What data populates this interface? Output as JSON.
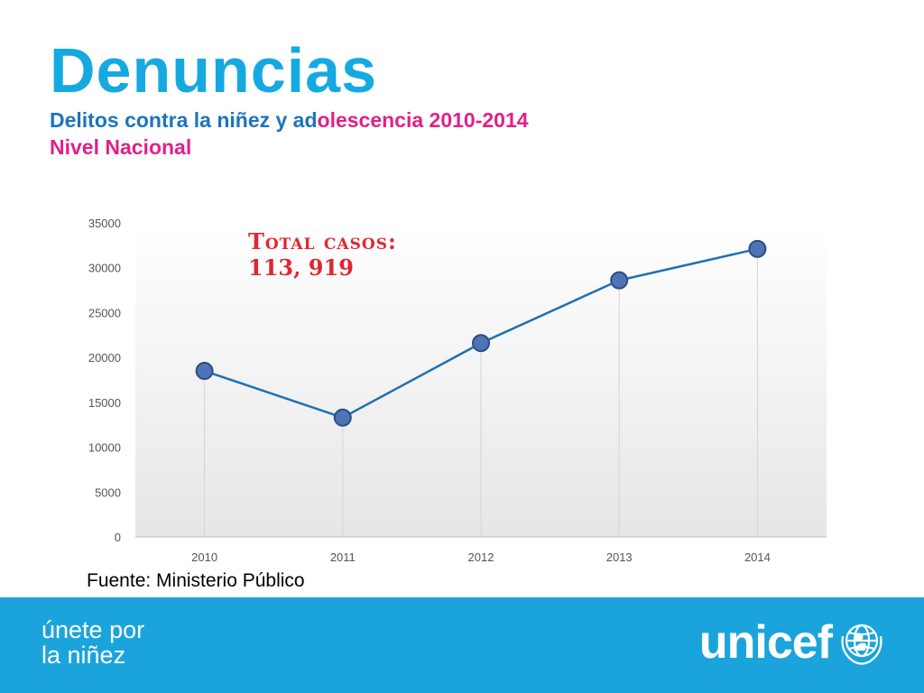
{
  "header": {
    "title": "Denuncias",
    "subtitle_line1_part1": "Delitos contra la niñez y ad",
    "subtitle_line1_part2": "olescencia 2010-2014",
    "subtitle_line2": "Nivel Nacional"
  },
  "annotation": {
    "line1": "Total casos:",
    "line2": "113, 919"
  },
  "source": "Fuente:  Ministerio Público",
  "footer": {
    "slogan_line1": "únete por",
    "slogan_line2": "la niñez",
    "brand": "unicef"
  },
  "colors": {
    "title": "#16a9e1",
    "subtitle_blue": "#1b75bb",
    "subtitle_pink": "#e0218a",
    "line": "#1f6fb2",
    "marker_fill": "#4f74b5",
    "marker_stroke": "#2c4d86",
    "annotation": "#e0262f",
    "footer": "#1ba4dc"
  },
  "chart_data": {
    "type": "line",
    "categories": [
      "2010",
      "2011",
      "2012",
      "2013",
      "2014"
    ],
    "values": [
      18500,
      13300,
      21600,
      28600,
      32100
    ],
    "ylim": [
      0,
      35000
    ],
    "yticks": [
      0,
      5000,
      10000,
      15000,
      20000,
      25000,
      30000,
      35000
    ],
    "drop_lines": true,
    "legend": "none"
  }
}
